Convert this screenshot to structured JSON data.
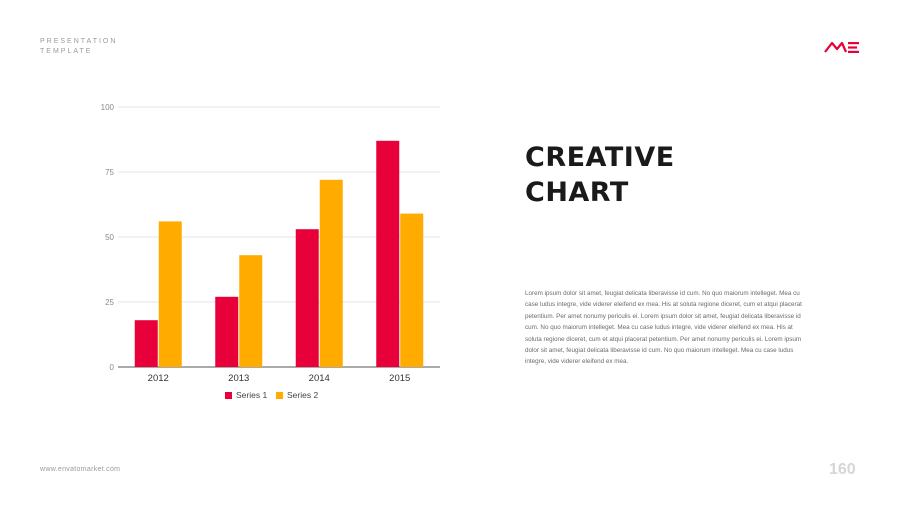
{
  "header": {
    "tag_line1": "PRESENTATION",
    "tag_line2": "TEMPLATE",
    "logo_icon": "me-logo-icon"
  },
  "footer": {
    "url": "www.envatomarket.com",
    "page_number": "160"
  },
  "content": {
    "title_line1": "CREATIVE",
    "title_line2": "CHART",
    "body": "Lorem ipsum dolor sit amet, feugiat delicata liberavisse id cum. No quo maiorum intelleget. Mea cu case ludus integre, vide viderer eleifend ex mea. His at soluta regione diceret, cum et atqui placerat petentium. Per amet nonumy periculis ei. Lorem ipsum dolor sit amet, feugiat delicata liberavisse id cum. No quo maiorum intelleget. Mea cu case ludus integre, vide viderer eleifend ex mea. His at soluta regione diceret, cum et atqui placerat petentium. Per amet nonumy periculis ei. Lorem ipsum dolor sit amet, feugiat delicata liberavisse id cum. No quo maiorum intelleget. Mea cu case ludus integre, vide viderer eleifend ex mea."
  },
  "colors": {
    "accent_red": "#e8003a",
    "accent_orange": "#ffab00",
    "title": "#1a1a1a"
  },
  "chart_data": {
    "type": "bar",
    "categories": [
      "2012",
      "2013",
      "2014",
      "2015"
    ],
    "series": [
      {
        "name": "Series 1",
        "values": [
          18,
          27,
          53,
          87
        ],
        "color": "#e8003a"
      },
      {
        "name": "Series 2",
        "values": [
          56,
          43,
          72,
          59
        ],
        "color": "#ffab00"
      }
    ],
    "ylim": [
      0,
      100
    ],
    "yticks": [
      0,
      25,
      50,
      75,
      100
    ],
    "grid": true,
    "legend": "bottom"
  }
}
